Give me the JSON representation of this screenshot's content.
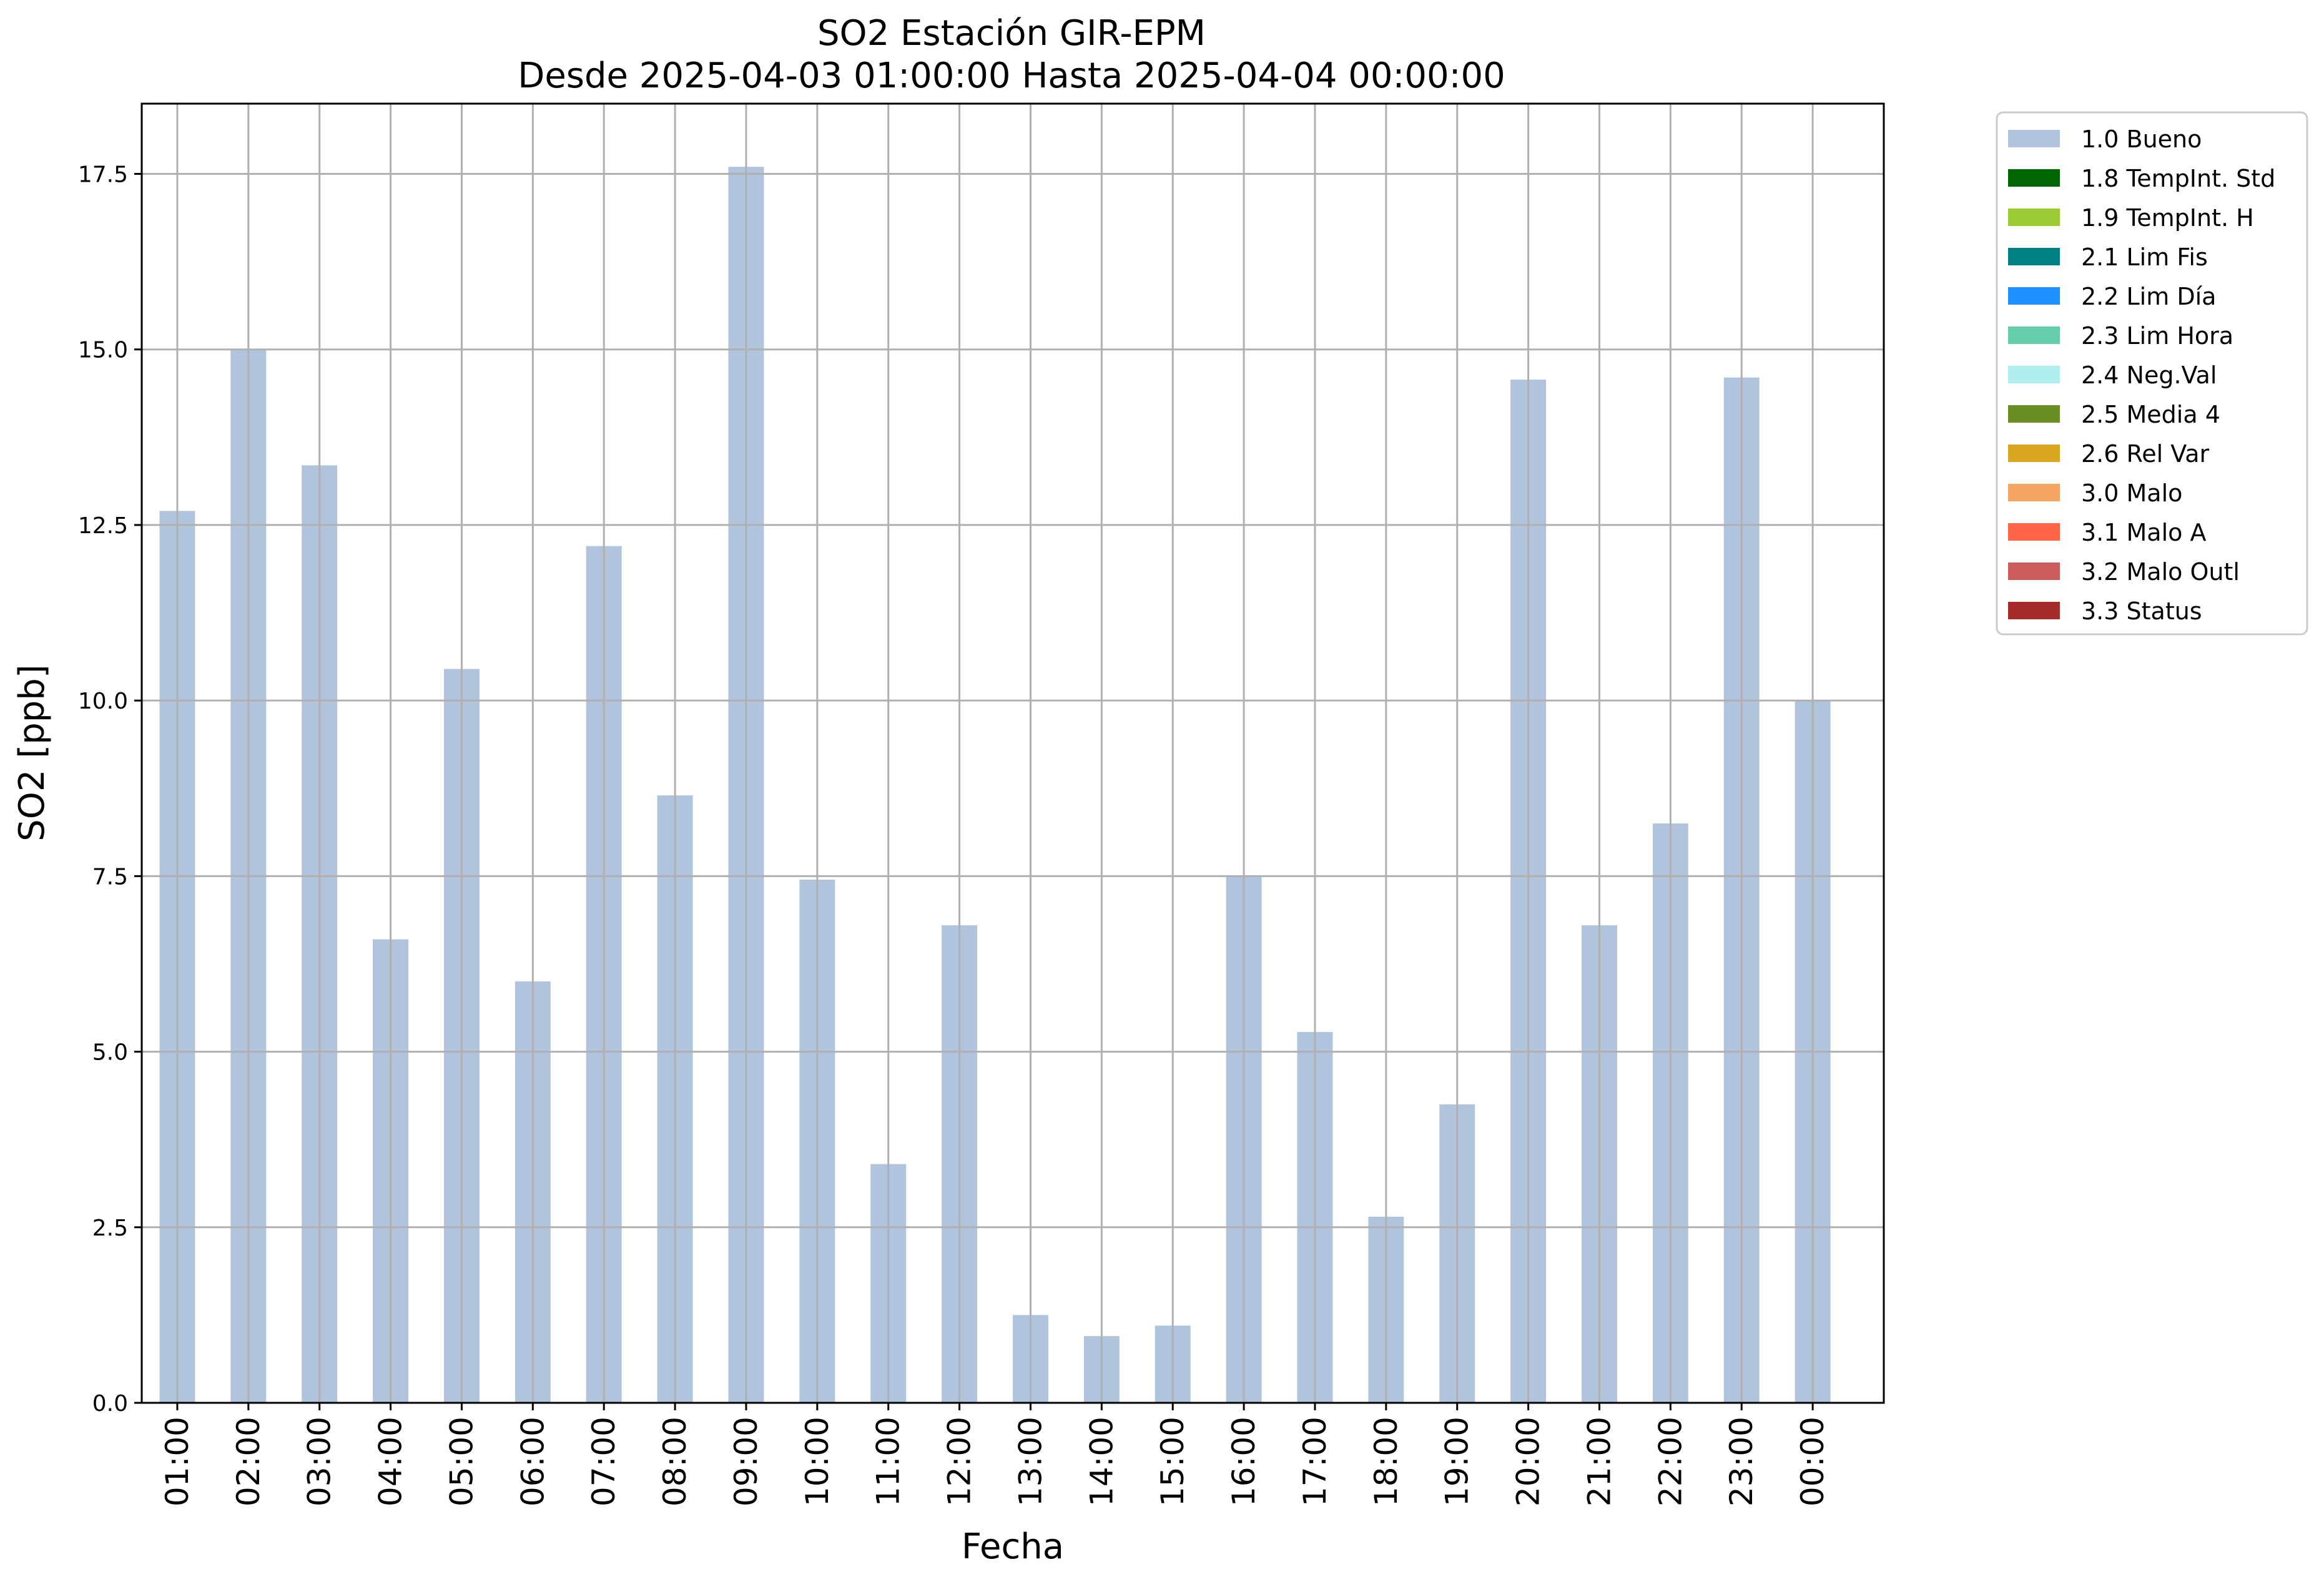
{
  "chart_data": {
    "type": "bar",
    "title": "SO2 Estación GIR-EPM",
    "subtitle": "Desde 2025-04-03 01:00:00 Hasta 2025-04-04 00:00:00",
    "xlabel": "Fecha",
    "ylabel": "SO2 [ppb]",
    "ylim": [
      0,
      18.5
    ],
    "yticks": [
      0.0,
      2.5,
      5.0,
      7.5,
      10.0,
      12.5,
      15.0,
      17.5
    ],
    "ytick_labels": [
      "0.0",
      "2.5",
      "5.0",
      "7.5",
      "10.0",
      "12.5",
      "15.0",
      "17.5"
    ],
    "grid": true,
    "legend_position": "outside-top-right",
    "categories": [
      "01:00",
      "02:00",
      "03:00",
      "04:00",
      "05:00",
      "06:00",
      "07:00",
      "08:00",
      "09:00",
      "10:00",
      "11:00",
      "12:00",
      "13:00",
      "14:00",
      "15:00",
      "16:00",
      "17:00",
      "18:00",
      "19:00",
      "20:00",
      "21:00",
      "22:00",
      "23:00",
      "00:00"
    ],
    "series": [
      {
        "name": "1.0 Bueno",
        "color": "#b0c4de",
        "values": [
          12.7,
          15.0,
          13.35,
          6.6,
          10.45,
          6.0,
          12.2,
          8.65,
          17.6,
          7.45,
          3.4,
          6.8,
          1.25,
          0.95,
          1.1,
          7.5,
          5.28,
          2.65,
          4.25,
          14.57,
          6.8,
          8.25,
          14.6,
          10.0
        ]
      }
    ],
    "legend": [
      {
        "label": "1.0 Bueno",
        "color": "#b0c4de"
      },
      {
        "label": "1.8 TempInt. Std",
        "color": "#006400"
      },
      {
        "label": "1.9 TempInt. H",
        "color": "#9acd32"
      },
      {
        "label": "2.1 Lim Fis",
        "color": "#008080"
      },
      {
        "label": "2.2 Lim Día",
        "color": "#1e90ff"
      },
      {
        "label": "2.3 Lim Hora",
        "color": "#66cdaa"
      },
      {
        "label": "2.4 Neg.Val",
        "color": "#afeeee"
      },
      {
        "label": "2.5 Media 4",
        "color": "#6b8e23"
      },
      {
        "label": "2.6 Rel Var",
        "color": "#daa520"
      },
      {
        "label": "3.0 Malo",
        "color": "#f4a460"
      },
      {
        "label": "3.1 Malo A",
        "color": "#ff6347"
      },
      {
        "label": "3.2 Malo Outl",
        "color": "#cd5c5c"
      },
      {
        "label": "3.3 Status",
        "color": "#a52a2a"
      }
    ]
  }
}
